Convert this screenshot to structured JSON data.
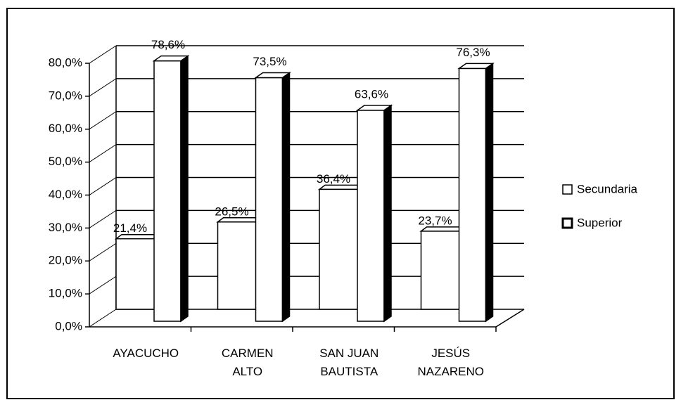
{
  "chart_data": {
    "type": "bar3d",
    "categories": [
      "AYACUCHO",
      "CARMEN ALTO",
      "SAN JUAN BAUTISTA",
      "JESÚS NAZARENO"
    ],
    "series": [
      {
        "name": "Secundaria",
        "color": "#ffffff",
        "values": [
          21.4,
          26.5,
          36.4,
          23.7
        ],
        "value_labels": [
          "21,4%",
          "26,5%",
          "36,4%",
          "23,7%"
        ]
      },
      {
        "name": "Superior",
        "color": "#ffffff",
        "side_color": "#000000",
        "values": [
          78.6,
          73.5,
          63.6,
          76.3
        ],
        "value_labels": [
          "78,6%",
          "73,5%",
          "63,6%",
          "76,3%"
        ]
      }
    ],
    "ylim": [
      0,
      80
    ],
    "yticks": [
      {
        "value": 0,
        "label": "0,0%"
      },
      {
        "value": 10,
        "label": "10,0%"
      },
      {
        "value": 20,
        "label": "20,0%"
      },
      {
        "value": 30,
        "label": "30,0%"
      },
      {
        "value": 40,
        "label": "40,0%"
      },
      {
        "value": 50,
        "label": "50,0%"
      },
      {
        "value": 60,
        "label": "60,0%"
      },
      {
        "value": 70,
        "label": "70,0%"
      },
      {
        "value": 80,
        "label": "80,0%"
      }
    ],
    "grid": true,
    "legend": "right"
  }
}
